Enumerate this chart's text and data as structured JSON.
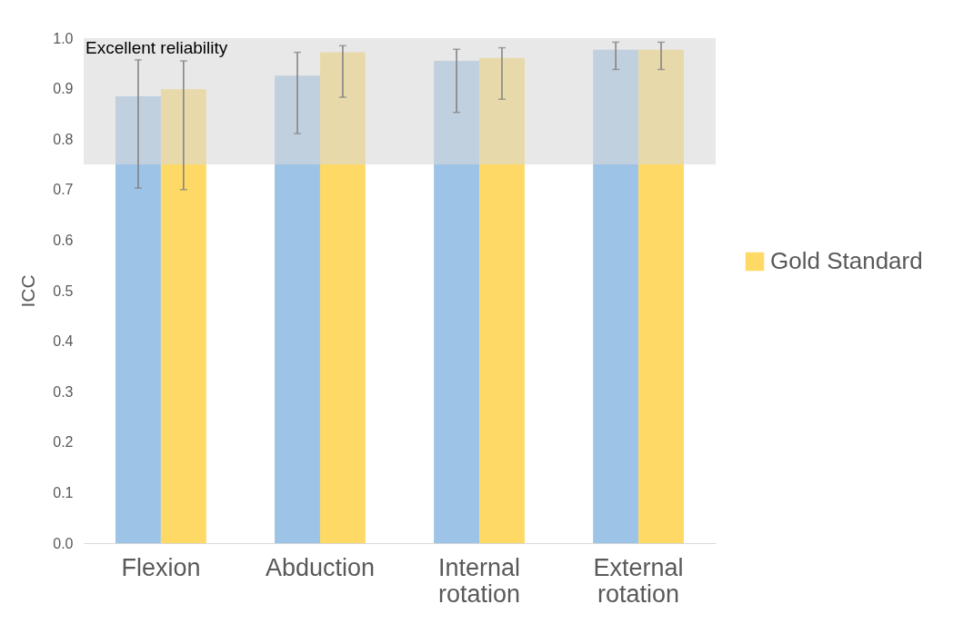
{
  "chart_data": {
    "type": "bar",
    "ylabel": "ICC",
    "categories": [
      "Flexion",
      "Abduction",
      "Internal rotation",
      "External rotation"
    ],
    "series": [
      {
        "color": "#9dc3e6",
        "values": [
          0.885,
          0.926,
          0.955,
          0.977
        ],
        "errors": [
          [
            0.703,
            0.957
          ],
          [
            0.811,
            0.972
          ],
          [
            0.853,
            0.978
          ],
          [
            0.938,
            0.992
          ]
        ]
      },
      {
        "name": "Gold Standard",
        "color": "#ffd966",
        "values": [
          0.899,
          0.972,
          0.961,
          0.977
        ],
        "errors": [
          [
            0.7,
            0.955
          ],
          [
            0.883,
            0.985
          ],
          [
            0.879,
            0.981
          ],
          [
            0.938,
            0.992
          ]
        ]
      }
    ],
    "ylim": [
      0,
      1
    ],
    "yticks": [
      {
        "value": 0,
        "label": "0.0"
      },
      0.1,
      0.2,
      0.3,
      0.4,
      0.5,
      0.6,
      0.7,
      0.8,
      0.9,
      {
        "value": 1,
        "label": "1.0"
      }
    ],
    "bands": [
      {
        "axis": "y",
        "from": 0.75,
        "to": 1.0,
        "label": "Excellent reliability",
        "color": "#d9d9d9"
      }
    ],
    "grid": false,
    "legend": "right"
  }
}
